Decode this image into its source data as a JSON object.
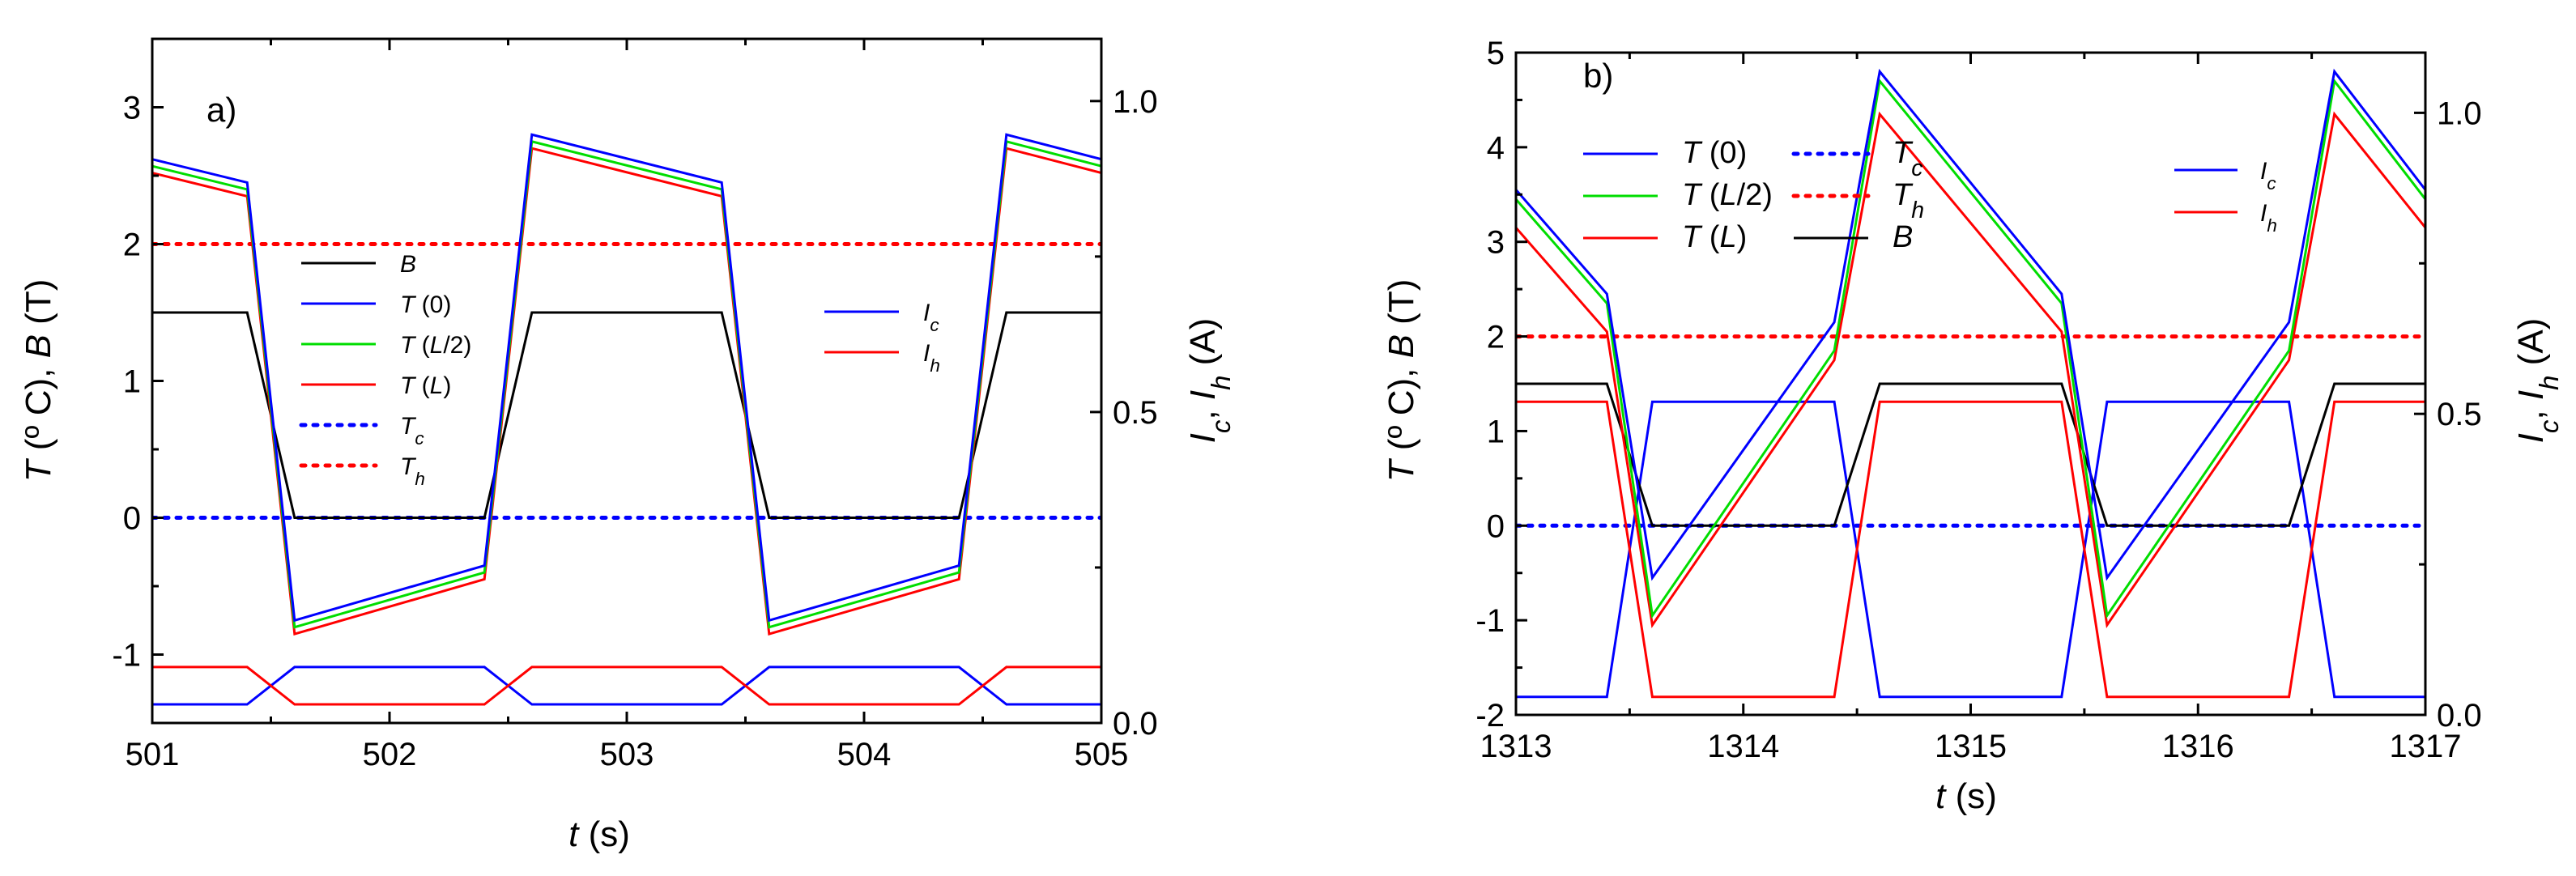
{
  "chart_data": [
    {
      "type": "line",
      "panel_label": "a)",
      "xlabel": "t (s)",
      "ylabel": "T (º C), B (T)",
      "y2label": "I_c, I_h (A)",
      "xlim": [
        501,
        505
      ],
      "ylim": [
        -1.5,
        3.5
      ],
      "y2lim": [
        0.0,
        1.1
      ],
      "xticks": [
        501,
        502,
        503,
        504,
        505
      ],
      "xtick_labels": [
        "501",
        "502",
        "503",
        "504",
        "505"
      ],
      "yticks": [
        -1,
        0,
        1,
        2,
        3
      ],
      "ytick_labels": [
        "-1",
        "0",
        "1",
        "2",
        "3"
      ],
      "y2ticks": [
        0.0,
        0.5,
        1.0
      ],
      "y2tick_labels": [
        "0.0",
        "0.5",
        "1.0"
      ],
      "series": [
        {
          "name": "B",
          "legend_main": "B",
          "legend_sub": "",
          "color": "#000000",
          "dash": false,
          "axis": "left",
          "x": [
            501,
            501.4,
            501.6,
            502.4,
            502.6,
            503.4,
            503.6,
            504.4,
            504.6,
            505
          ],
          "y": [
            1.5,
            1.5,
            0,
            0,
            1.5,
            1.5,
            0,
            0,
            1.5,
            1.5
          ]
        },
        {
          "name": "T (0)",
          "legend_main": "T",
          "legend_sub": " (0)",
          "color": "#0000ff",
          "dash": false,
          "axis": "left",
          "x": [
            501,
            501.4,
            501.6,
            502.4,
            502.6,
            503.4,
            503.6,
            504.4,
            504.6,
            505
          ],
          "y": [
            2.62,
            2.45,
            -0.75,
            -0.35,
            2.8,
            2.45,
            -0.75,
            -0.35,
            2.8,
            2.62
          ]
        },
        {
          "name": "T (L/2)",
          "legend_main": "T",
          "legend_sub": " (L/2)",
          "color": "#00dd00",
          "dash": false,
          "axis": "left",
          "x": [
            501,
            501.4,
            501.6,
            502.4,
            502.6,
            503.4,
            503.6,
            504.4,
            504.6,
            505
          ],
          "y": [
            2.57,
            2.4,
            -0.8,
            -0.4,
            2.75,
            2.4,
            -0.8,
            -0.4,
            2.75,
            2.57
          ]
        },
        {
          "name": "T (L)",
          "legend_main": "T",
          "legend_sub": " (L)",
          "color": "#ff0000",
          "dash": false,
          "axis": "left",
          "x": [
            501,
            501.4,
            501.6,
            502.4,
            502.6,
            503.4,
            503.6,
            504.4,
            504.6,
            505
          ],
          "y": [
            2.52,
            2.35,
            -0.85,
            -0.45,
            2.7,
            2.35,
            -0.85,
            -0.45,
            2.7,
            2.52
          ]
        },
        {
          "name": "T_c",
          "legend_main": "T",
          "legend_sub": "c",
          "color": "#0000ff",
          "dash": true,
          "axis": "left",
          "x": [
            501,
            505
          ],
          "y": [
            0,
            0
          ]
        },
        {
          "name": "T_h",
          "legend_main": "T",
          "legend_sub": "h",
          "color": "#ff0000",
          "dash": true,
          "axis": "left",
          "x": [
            501,
            505
          ],
          "y": [
            2,
            2
          ]
        },
        {
          "name": "I_c",
          "legend_main": "I",
          "legend_sub": "c",
          "color": "#0000ff",
          "dash": false,
          "axis": "right",
          "x": [
            501,
            501.4,
            501.6,
            502.4,
            502.6,
            503.4,
            503.6,
            504.4,
            504.6,
            505
          ],
          "y": [
            0.03,
            0.03,
            0.09,
            0.09,
            0.03,
            0.03,
            0.09,
            0.09,
            0.03,
            0.03
          ]
        },
        {
          "name": "I_h",
          "legend_main": "I",
          "legend_sub": "h",
          "color": "#ff0000",
          "dash": false,
          "axis": "right",
          "x": [
            501,
            501.4,
            501.6,
            502.4,
            502.6,
            503.4,
            503.6,
            504.4,
            504.6,
            505
          ],
          "y": [
            0.09,
            0.09,
            0.03,
            0.03,
            0.09,
            0.09,
            0.03,
            0.03,
            0.09,
            0.09
          ]
        }
      ],
      "legend_left": [
        "B",
        "T (0)",
        "T (L/2)",
        "T (L)",
        "T_c",
        "T_h"
      ],
      "legend_right": [
        "I_c",
        "I_h"
      ]
    },
    {
      "type": "line",
      "panel_label": "b)",
      "xlabel": "t (s)",
      "ylabel": "T (º C), B (T)",
      "y2label": "I_c, I_h (A)",
      "xlim": [
        1313,
        1317
      ],
      "ylim": [
        -2,
        5
      ],
      "y2lim": [
        0.0,
        1.1
      ],
      "xticks": [
        1313,
        1314,
        1315,
        1316,
        1317
      ],
      "xtick_labels": [
        "1313",
        "1314",
        "1315",
        "1316",
        "1317"
      ],
      "yticks": [
        -2,
        -1,
        0,
        1,
        2,
        3,
        4,
        5
      ],
      "ytick_labels": [
        "-2",
        "-1",
        "0",
        "1",
        "2",
        "3",
        "4",
        "5"
      ],
      "y2ticks": [
        0.0,
        0.5,
        1.0
      ],
      "y2tick_labels": [
        "0.0",
        "0.5",
        "1.0"
      ],
      "series": [
        {
          "name": "B",
          "legend_main": "B",
          "legend_sub": "",
          "color": "#000000",
          "dash": false,
          "axis": "left",
          "x": [
            1313,
            1313.4,
            1313.6,
            1314.4,
            1314.6,
            1315.4,
            1315.6,
            1316.4,
            1316.6,
            1317
          ],
          "y": [
            1.5,
            1.5,
            0,
            0,
            1.5,
            1.5,
            0,
            0,
            1.5,
            1.5
          ]
        },
        {
          "name": "T (0)",
          "legend_main": "T",
          "legend_sub": " (0)",
          "color": "#0000ff",
          "dash": false,
          "axis": "left",
          "x": [
            1313,
            1313.4,
            1313.6,
            1314.4,
            1314.6,
            1315.4,
            1315.6,
            1316.4,
            1316.6,
            1317
          ],
          "y": [
            3.55,
            2.45,
            -0.55,
            2.15,
            4.8,
            2.45,
            -0.55,
            2.15,
            4.8,
            3.55
          ]
        },
        {
          "name": "T (L/2)",
          "legend_main": "T",
          "legend_sub": " (L/2)",
          "color": "#00dd00",
          "dash": false,
          "axis": "left",
          "x": [
            1313,
            1313.4,
            1313.6,
            1314.4,
            1314.6,
            1315.4,
            1315.6,
            1316.4,
            1316.6,
            1317
          ],
          "y": [
            3.45,
            2.35,
            -0.95,
            1.85,
            4.7,
            2.35,
            -0.95,
            1.85,
            4.7,
            3.45
          ]
        },
        {
          "name": "T (L)",
          "legend_main": "T",
          "legend_sub": " (L)",
          "color": "#ff0000",
          "dash": false,
          "axis": "left",
          "x": [
            1313,
            1313.4,
            1313.6,
            1314.4,
            1314.6,
            1315.4,
            1315.6,
            1316.4,
            1316.6,
            1317
          ],
          "y": [
            3.15,
            2.05,
            -1.05,
            1.75,
            4.35,
            2.05,
            -1.05,
            1.75,
            4.35,
            3.15
          ]
        },
        {
          "name": "T_c",
          "legend_main": "T",
          "legend_sub": "c",
          "color": "#0000ff",
          "dash": true,
          "axis": "left",
          "x": [
            1313,
            1317
          ],
          "y": [
            0,
            0
          ]
        },
        {
          "name": "T_h",
          "legend_main": "T",
          "legend_sub": "h",
          "color": "#ff0000",
          "dash": true,
          "axis": "left",
          "x": [
            1313,
            1317
          ],
          "y": [
            2,
            2
          ]
        },
        {
          "name": "I_c",
          "legend_main": "I",
          "legend_sub": "c",
          "color": "#0000ff",
          "dash": false,
          "axis": "right",
          "x": [
            1313,
            1313.4,
            1313.6,
            1314.4,
            1314.6,
            1315.4,
            1315.6,
            1316.4,
            1316.6,
            1317
          ],
          "y": [
            0.03,
            0.03,
            0.52,
            0.52,
            0.03,
            0.03,
            0.52,
            0.52,
            0.03,
            0.03
          ]
        },
        {
          "name": "I_h",
          "legend_main": "I",
          "legend_sub": "h",
          "color": "#ff0000",
          "dash": false,
          "axis": "right",
          "x": [
            1313,
            1313.4,
            1313.6,
            1314.4,
            1314.6,
            1315.4,
            1315.6,
            1316.4,
            1316.6,
            1317
          ],
          "y": [
            0.52,
            0.52,
            0.03,
            0.03,
            0.52,
            0.52,
            0.03,
            0.03,
            0.52,
            0.52
          ]
        }
      ],
      "legend_left": [
        "T (0)",
        "T_c",
        "T (L/2)",
        "T_h",
        "T (L)",
        "B"
      ],
      "legend_right": [
        "I_c",
        "I_h"
      ]
    }
  ]
}
